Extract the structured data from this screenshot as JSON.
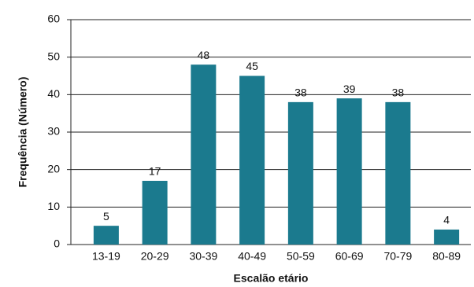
{
  "chart_data": {
    "type": "bar",
    "x_label": "Escalão etário",
    "y_label": "Frequência (Número)",
    "categories": [
      "13-19",
      "20-29",
      "30-39",
      "40-49",
      "50-59",
      "60-69",
      "70-79",
      "80-89"
    ],
    "values": [
      5,
      17,
      48,
      45,
      38,
      39,
      38,
      4
    ],
    "color": "#1b7a8e",
    "ylim": [
      0,
      60
    ],
    "yticks": [
      0,
      10,
      20,
      30,
      40,
      50,
      60
    ],
    "grid": true
  }
}
